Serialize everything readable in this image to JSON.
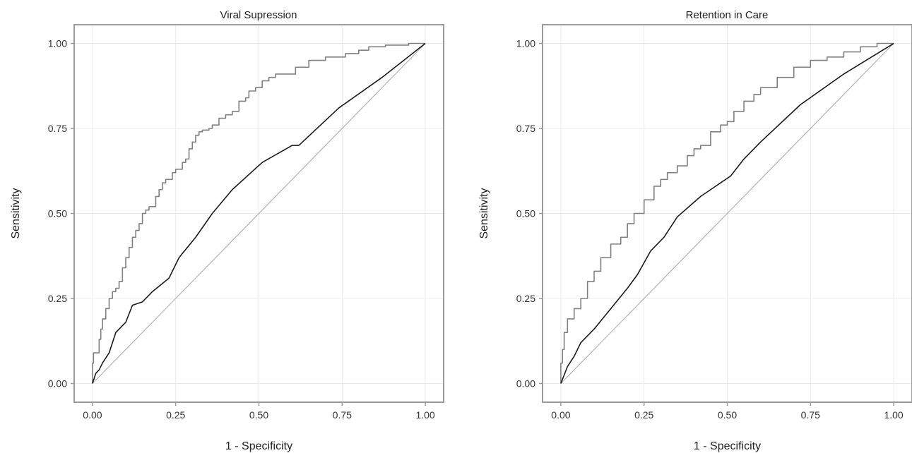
{
  "chart_data": [
    {
      "type": "line",
      "title": "Viral Supression",
      "xlabel": "1 - Specificity",
      "ylabel": "Sensitivity",
      "xlim": [
        0,
        1
      ],
      "ylim": [
        0,
        1
      ],
      "x_ticks": [
        "0.00",
        "0.25",
        "0.50",
        "0.75",
        "1.00"
      ],
      "y_ticks": [
        "0.00",
        "0.25",
        "0.50",
        "0.75",
        "1.00"
      ],
      "grid": true,
      "legend": "none",
      "colors": {
        "upper": "#808080",
        "lower": "#1a1a1a",
        "reference": "#b3b3b3"
      },
      "series": [
        {
          "values": [
            [
              0,
              0
            ],
            [
              0.003,
              0.06
            ],
            [
              0.006,
              0.09
            ],
            [
              0.02,
              0.09
            ],
            [
              0.025,
              0.13
            ],
            [
              0.03,
              0.16
            ],
            [
              0.04,
              0.19
            ],
            [
              0.05,
              0.22
            ],
            [
              0.06,
              0.25
            ],
            [
              0.07,
              0.27
            ],
            [
              0.08,
              0.28
            ],
            [
              0.09,
              0.3
            ],
            [
              0.1,
              0.34
            ],
            [
              0.11,
              0.37
            ],
            [
              0.12,
              0.4
            ],
            [
              0.13,
              0.43
            ],
            [
              0.14,
              0.45
            ],
            [
              0.15,
              0.47
            ],
            [
              0.16,
              0.5
            ],
            [
              0.17,
              0.51
            ],
            [
              0.19,
              0.52
            ],
            [
              0.2,
              0.55
            ],
            [
              0.21,
              0.57
            ],
            [
              0.22,
              0.59
            ],
            [
              0.24,
              0.6
            ],
            [
              0.25,
              0.62
            ],
            [
              0.27,
              0.63
            ],
            [
              0.28,
              0.65
            ],
            [
              0.29,
              0.66
            ],
            [
              0.3,
              0.69
            ],
            [
              0.31,
              0.71
            ],
            [
              0.32,
              0.73
            ],
            [
              0.33,
              0.74
            ],
            [
              0.35,
              0.745
            ],
            [
              0.36,
              0.75
            ],
            [
              0.38,
              0.76
            ],
            [
              0.4,
              0.78
            ],
            [
              0.42,
              0.79
            ],
            [
              0.44,
              0.8
            ],
            [
              0.46,
              0.83
            ],
            [
              0.47,
              0.84
            ],
            [
              0.49,
              0.86
            ],
            [
              0.51,
              0.87
            ],
            [
              0.53,
              0.89
            ],
            [
              0.55,
              0.9
            ],
            [
              0.61,
              0.91
            ],
            [
              0.65,
              0.93
            ],
            [
              0.7,
              0.95
            ],
            [
              0.76,
              0.96
            ],
            [
              0.8,
              0.97
            ],
            [
              0.83,
              0.98
            ],
            [
              0.88,
              0.99
            ],
            [
              0.95,
              0.995
            ],
            [
              1,
              1
            ]
          ]
        },
        {
          "values": [
            [
              0,
              0
            ],
            [
              0.01,
              0.03
            ],
            [
              0.02,
              0.04
            ],
            [
              0.03,
              0.06
            ],
            [
              0.05,
              0.09
            ],
            [
              0.07,
              0.15
            ],
            [
              0.1,
              0.18
            ],
            [
              0.12,
              0.23
            ],
            [
              0.15,
              0.24
            ],
            [
              0.18,
              0.27
            ],
            [
              0.23,
              0.31
            ],
            [
              0.26,
              0.37
            ],
            [
              0.31,
              0.43
            ],
            [
              0.36,
              0.5
            ],
            [
              0.42,
              0.57
            ],
            [
              0.51,
              0.65
            ],
            [
              0.6,
              0.7
            ],
            [
              0.62,
              0.7
            ],
            [
              0.74,
              0.81
            ],
            [
              0.87,
              0.9
            ],
            [
              1,
              1
            ]
          ]
        },
        {
          "values": [
            [
              0,
              0
            ],
            [
              1,
              1
            ]
          ]
        }
      ]
    },
    {
      "type": "line",
      "title": "Retention in Care",
      "xlabel": "1 - Specificity",
      "ylabel": "Sensitivity",
      "xlim": [
        0,
        1
      ],
      "ylim": [
        0,
        1
      ],
      "x_ticks": [
        "0.00",
        "0.25",
        "0.50",
        "0.75",
        "1.00"
      ],
      "y_ticks": [
        "0.00",
        "0.25",
        "0.50",
        "0.75",
        "1.00"
      ],
      "grid": true,
      "legend": "none",
      "colors": {
        "upper": "#808080",
        "lower": "#1a1a1a",
        "reference": "#b3b3b3"
      },
      "series": [
        {
          "values": [
            [
              0,
              0
            ],
            [
              0.005,
              0.06
            ],
            [
              0.01,
              0.1
            ],
            [
              0.02,
              0.15
            ],
            [
              0.04,
              0.19
            ],
            [
              0.06,
              0.22
            ],
            [
              0.08,
              0.25
            ],
            [
              0.1,
              0.3
            ],
            [
              0.12,
              0.33
            ],
            [
              0.15,
              0.37
            ],
            [
              0.18,
              0.41
            ],
            [
              0.2,
              0.43
            ],
            [
              0.22,
              0.47
            ],
            [
              0.25,
              0.5
            ],
            [
              0.28,
              0.54
            ],
            [
              0.3,
              0.58
            ],
            [
              0.32,
              0.6
            ],
            [
              0.35,
              0.62
            ],
            [
              0.38,
              0.64
            ],
            [
              0.4,
              0.67
            ],
            [
              0.42,
              0.69
            ],
            [
              0.45,
              0.7
            ],
            [
              0.48,
              0.74
            ],
            [
              0.5,
              0.76
            ],
            [
              0.52,
              0.77
            ],
            [
              0.55,
              0.8
            ],
            [
              0.58,
              0.83
            ],
            [
              0.6,
              0.85
            ],
            [
              0.65,
              0.87
            ],
            [
              0.7,
              0.9
            ],
            [
              0.75,
              0.93
            ],
            [
              0.8,
              0.95
            ],
            [
              0.85,
              0.96
            ],
            [
              0.9,
              0.975
            ],
            [
              0.95,
              0.99
            ],
            [
              1,
              1
            ]
          ]
        },
        {
          "values": [
            [
              0,
              0
            ],
            [
              0.02,
              0.05
            ],
            [
              0.04,
              0.08
            ],
            [
              0.06,
              0.12
            ],
            [
              0.1,
              0.16
            ],
            [
              0.15,
              0.22
            ],
            [
              0.2,
              0.28
            ],
            [
              0.23,
              0.32
            ],
            [
              0.27,
              0.39
            ],
            [
              0.31,
              0.43
            ],
            [
              0.35,
              0.49
            ],
            [
              0.42,
              0.55
            ],
            [
              0.51,
              0.61
            ],
            [
              0.55,
              0.66
            ],
            [
              0.6,
              0.71
            ],
            [
              0.72,
              0.82
            ],
            [
              0.85,
              0.91
            ],
            [
              1,
              1
            ]
          ]
        },
        {
          "values": [
            [
              0,
              0
            ],
            [
              1,
              1
            ]
          ]
        }
      ]
    }
  ]
}
